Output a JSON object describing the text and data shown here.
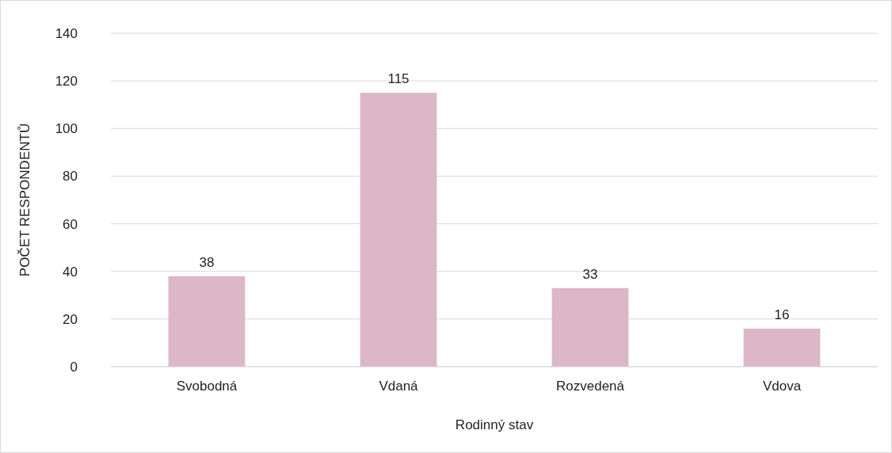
{
  "chart_data": {
    "type": "bar",
    "xlabel": "Rodinný stav",
    "ylabel": "POČET RESPONDENTŮ",
    "categories": [
      "Svobodná",
      "Vdaná",
      "Rozvedená",
      "Vdova"
    ],
    "values": [
      38,
      115,
      33,
      16
    ],
    "color": "#dbb7c7",
    "ylim": [
      0,
      140
    ],
    "yticks": [
      0,
      20,
      40,
      60,
      80,
      100,
      120,
      140
    ],
    "grid": "y",
    "data_labels": true
  }
}
